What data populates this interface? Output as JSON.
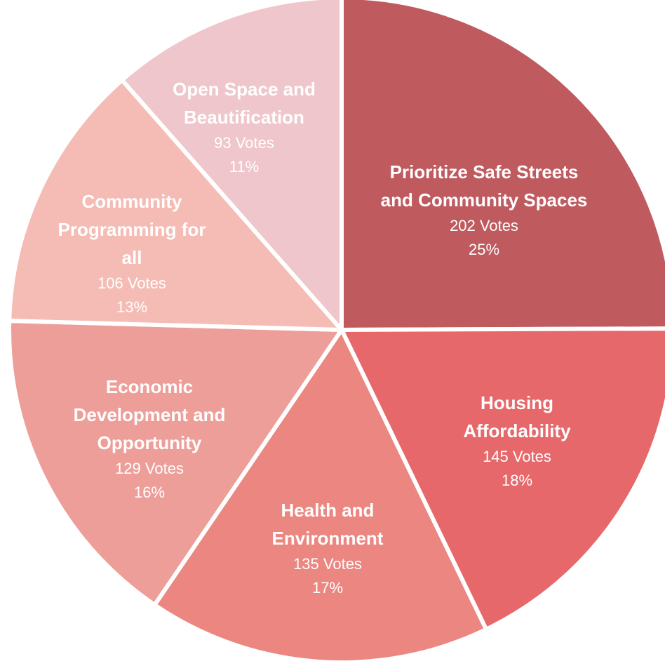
{
  "chart_data": {
    "type": "pie",
    "categories": [
      "Prioritize Safe Streets and Community Spaces",
      "Housing Affordability",
      "Health and Environment",
      "Economic Development and Opportunity",
      "Community Programming for all",
      "Open Space and Beautification"
    ],
    "values": [
      202,
      145,
      135,
      129,
      106,
      93
    ],
    "value_labels": [
      "202 Votes",
      "145 Votes",
      "135 Votes",
      "129 Votes",
      "106 Votes",
      "93 Votes"
    ],
    "percents": [
      25,
      18,
      17,
      16,
      13,
      11
    ],
    "percent_labels": [
      "25%",
      "18%",
      "17%",
      "16%",
      "13%",
      "11%"
    ],
    "colors": [
      "#bf5a5f",
      "#e7686a",
      "#eb8680",
      "#ee9e98",
      "#f4bcb4",
      "#efc6cb"
    ]
  }
}
